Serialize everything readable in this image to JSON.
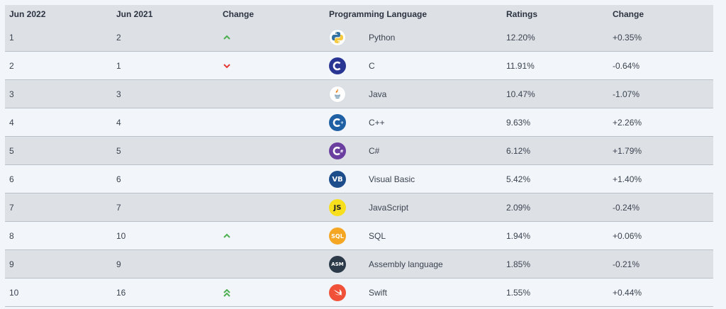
{
  "header": {
    "col_now": "Jun 2022",
    "col_prev": "Jun 2021",
    "col_change_dir": "Change",
    "col_language": "Programming Language",
    "col_ratings": "Ratings",
    "col_change": "Change"
  },
  "rows": [
    {
      "now": "1",
      "prev": "2",
      "direction": "up",
      "language": "Python",
      "rating": "12.20%",
      "change": "+0.35%",
      "logo": "python-icon"
    },
    {
      "now": "2",
      "prev": "1",
      "direction": "down",
      "language": "C",
      "rating": "11.91%",
      "change": "-0.64%",
      "logo": "c-icon"
    },
    {
      "now": "3",
      "prev": "3",
      "direction": "none",
      "language": "Java",
      "rating": "10.47%",
      "change": "-1.07%",
      "logo": "java-icon"
    },
    {
      "now": "4",
      "prev": "4",
      "direction": "none",
      "language": "C++",
      "rating": "9.63%",
      "change": "+2.26%",
      "logo": "cpp-icon"
    },
    {
      "now": "5",
      "prev": "5",
      "direction": "none",
      "language": "C#",
      "rating": "6.12%",
      "change": "+1.79%",
      "logo": "csharp-icon"
    },
    {
      "now": "6",
      "prev": "6",
      "direction": "none",
      "language": "Visual Basic",
      "rating": "5.42%",
      "change": "+1.40%",
      "logo": "visual-basic-icon",
      "logo_text": "VB"
    },
    {
      "now": "7",
      "prev": "7",
      "direction": "none",
      "language": "JavaScript",
      "rating": "2.09%",
      "change": "-0.24%",
      "logo": "javascript-icon",
      "logo_text": "JS"
    },
    {
      "now": "8",
      "prev": "10",
      "direction": "up",
      "language": "SQL",
      "rating": "1.94%",
      "change": "+0.06%",
      "logo": "sql-icon",
      "logo_text": "SQL"
    },
    {
      "now": "9",
      "prev": "9",
      "direction": "none",
      "language": "Assembly language",
      "rating": "1.85%",
      "change": "-0.21%",
      "logo": "assembly-icon",
      "logo_text": "ASM"
    },
    {
      "now": "10",
      "prev": "16",
      "direction": "double-up",
      "language": "Swift",
      "rating": "1.55%",
      "change": "+0.44%",
      "logo": "swift-icon"
    }
  ],
  "colors": {
    "up_arrow": "#4caf50",
    "down_arrow": "#e53935",
    "row_alt": "#dde1e6",
    "row_base": "#f2f6fa"
  }
}
